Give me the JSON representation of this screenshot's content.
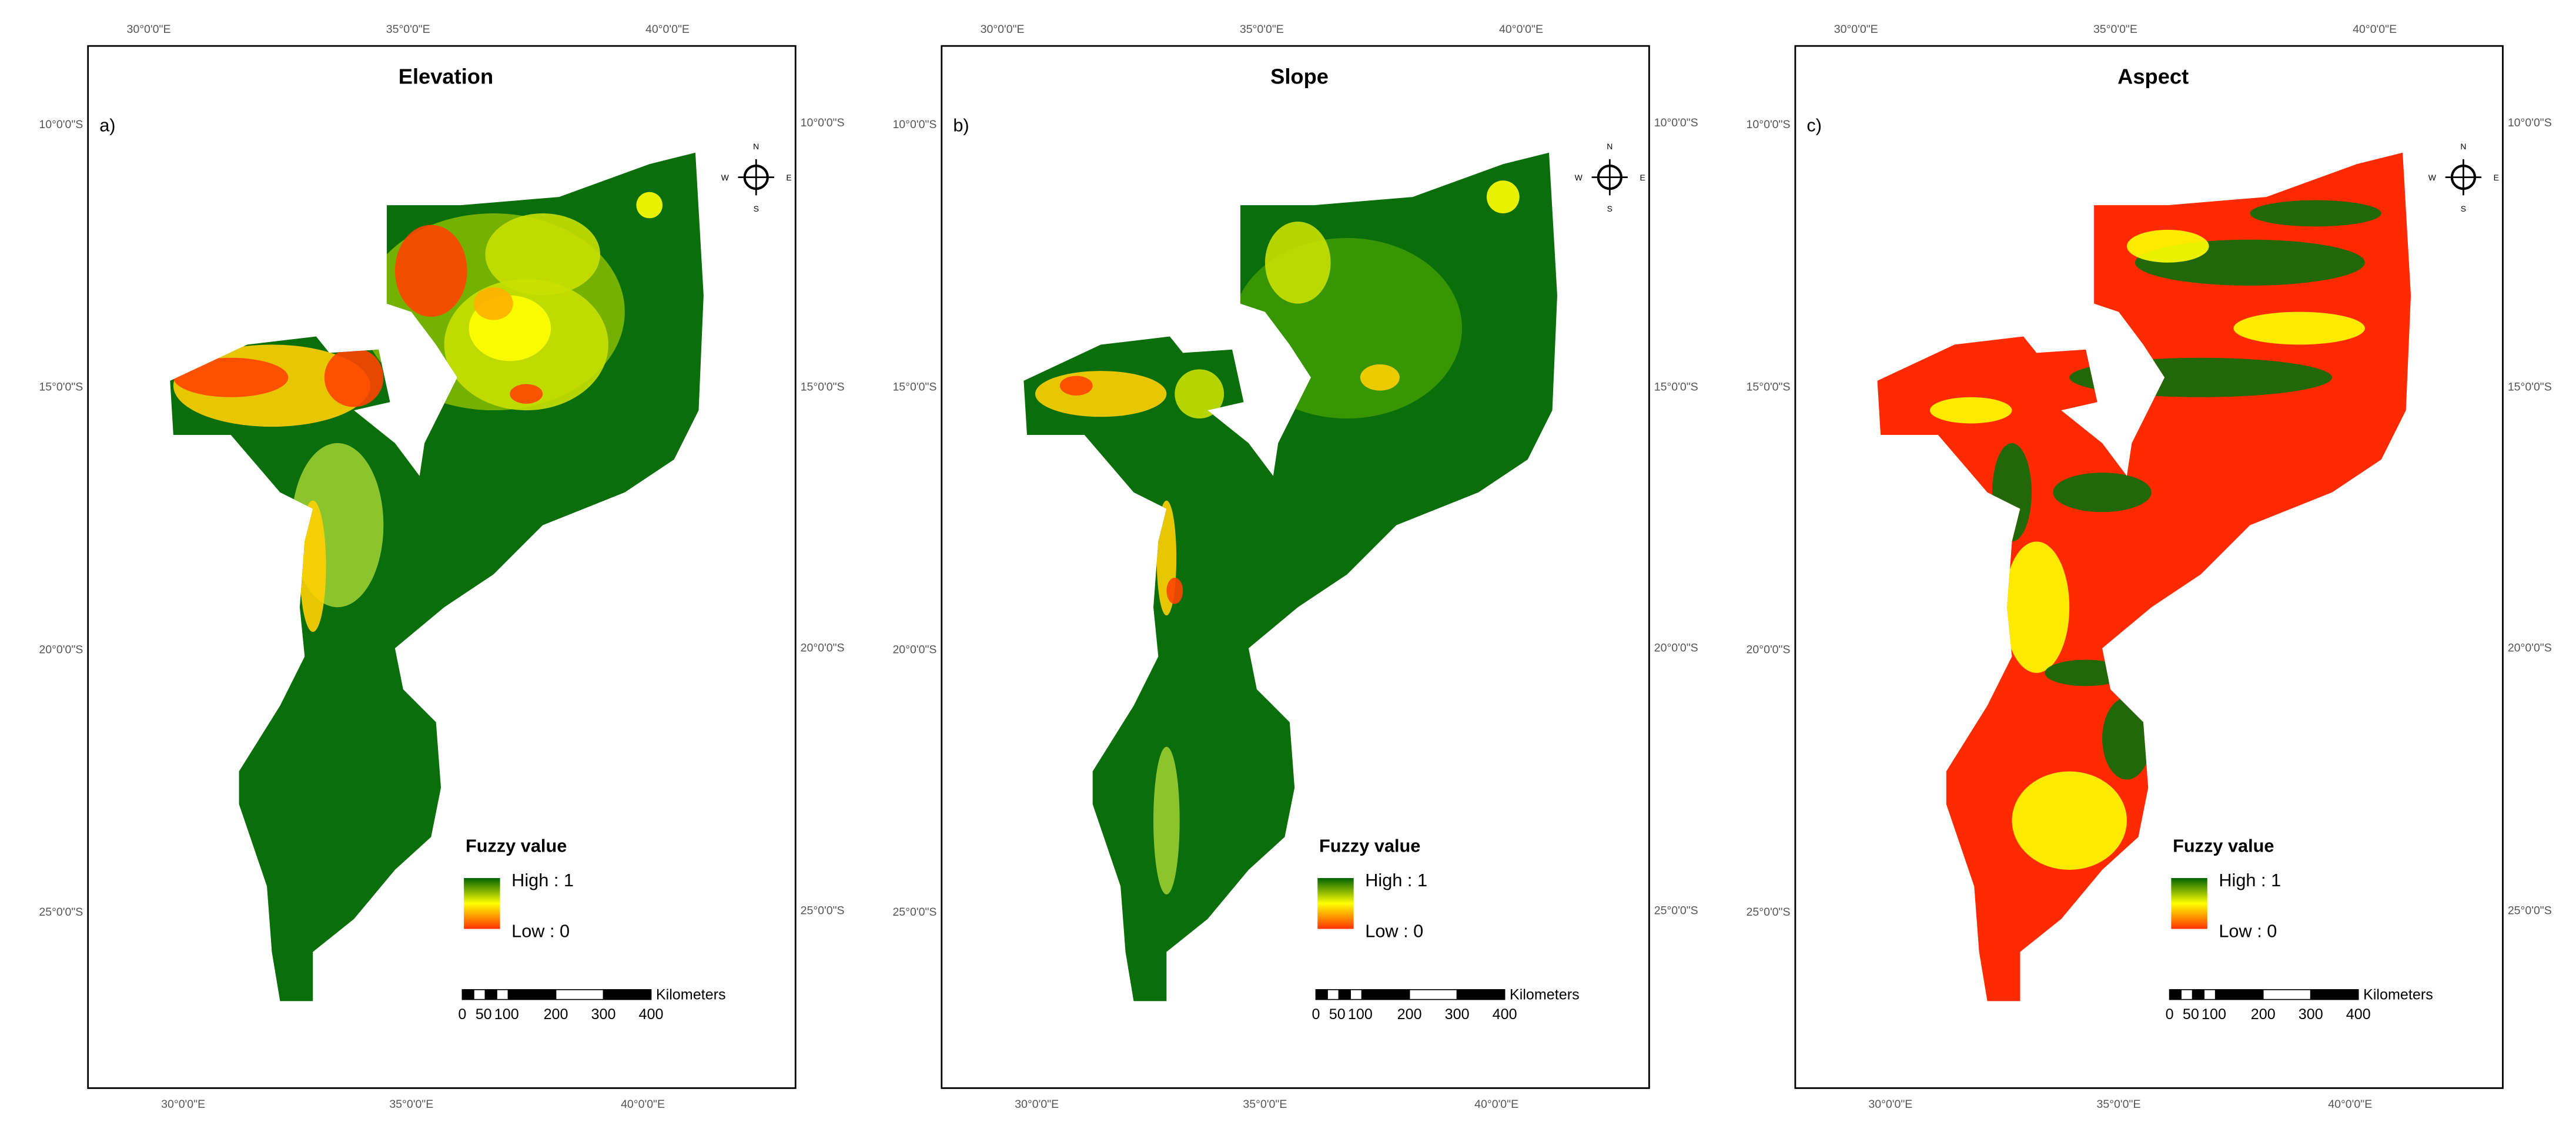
{
  "panels": [
    {
      "title": "Elevation",
      "label": "a)",
      "top_ticks": [
        "30°0'0\"E",
        "35°0'0\"E",
        "40°0'0\"E"
      ],
      "bottom_ticks": [
        "30°0'0\"E",
        "35°0'0\"E",
        "40°0'0\"E"
      ],
      "left_ticks": [
        "10°0'0\"S",
        "15°0'0\"S",
        "20°0'0\"S",
        "25°0'0\"S"
      ],
      "right_ticks": [
        "10°0'0\"S",
        "15°0'0\"S",
        "20°0'0\"S",
        "25°0'0\"S"
      ],
      "compass": {
        "n": "N",
        "s": "S",
        "e": "E",
        "w": "W"
      },
      "legend": {
        "title": "Fuzzy value",
        "high": "High : 1",
        "low": "Low : 0"
      },
      "scale": {
        "unit": "Kilometers",
        "labels": [
          0,
          50,
          100,
          200,
          300,
          400
        ]
      }
    },
    {
      "title": "Slope",
      "label": "b)",
      "top_ticks": [
        "30°0'0\"E",
        "35°0'0\"E",
        "40°0'0\"E"
      ],
      "bottom_ticks": [
        "30°0'0\"E",
        "35°0'0\"E",
        "40°0'0\"E"
      ],
      "left_ticks": [
        "10°0'0\"S",
        "15°0'0\"S",
        "20°0'0\"S",
        "25°0'0\"S"
      ],
      "right_ticks": [
        "10°0'0\"S",
        "15°0'0\"S",
        "20°0'0\"S",
        "25°0'0\"S"
      ],
      "compass": {
        "n": "N",
        "s": "S",
        "e": "E",
        "w": "W"
      },
      "legend": {
        "title": "Fuzzy value",
        "high": "High : 1",
        "low": "Low : 0"
      },
      "scale": {
        "unit": "Kilometers",
        "labels": [
          0,
          50,
          100,
          200,
          300,
          400
        ]
      }
    },
    {
      "title": "Aspect",
      "label": "c)",
      "top_ticks": [
        "30°0'0\"E",
        "35°0'0\"E",
        "40°0'0\"E"
      ],
      "bottom_ticks": [
        "30°0'0\"E",
        "35°0'0\"E",
        "40°0'0\"E"
      ],
      "left_ticks": [
        "10°0'0\"S",
        "15°0'0\"S",
        "20°0'0\"S",
        "25°0'0\"S"
      ],
      "right_ticks": [
        "10°0'0\"S",
        "15°0'0\"S",
        "20°0'0\"S",
        "25°0'0\"S"
      ],
      "compass": {
        "n": "N",
        "s": "S",
        "e": "E",
        "w": "W"
      },
      "legend": {
        "title": "Fuzzy value",
        "high": "High : 1",
        "low": "Low : 0"
      },
      "scale": {
        "unit": "Kilometers",
        "labels": [
          0,
          50,
          100,
          200,
          300,
          400
        ]
      }
    }
  ]
}
